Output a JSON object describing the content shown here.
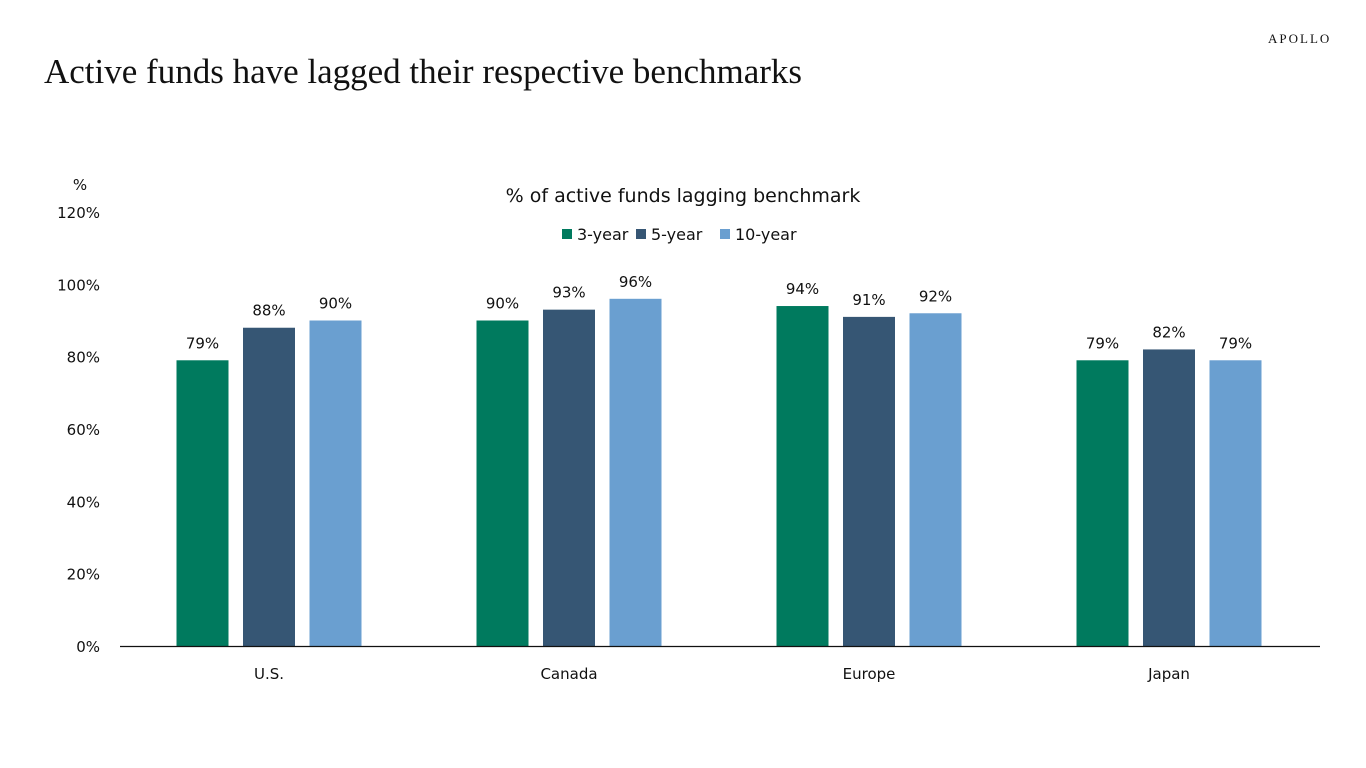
{
  "page": {
    "title": "Active funds have lagged their respective benchmarks",
    "logo": "APOLLO"
  },
  "chart_data": {
    "type": "bar",
    "title": "% of active funds lagging benchmark",
    "ylabel": "%",
    "xlabel": "",
    "categories": [
      "U.S.",
      "Canada",
      "Europe",
      "Japan"
    ],
    "series": [
      {
        "name": "3-year",
        "color": "#007A5E",
        "values": [
          79,
          90,
          94,
          79
        ]
      },
      {
        "name": "5-year",
        "color": "#365674",
        "values": [
          88,
          93,
          91,
          82
        ]
      },
      {
        "name": "10-year",
        "color": "#6A9FD0",
        "values": [
          90,
          96,
          92,
          79
        ]
      }
    ],
    "ylim": [
      0,
      120
    ],
    "yticks": [
      0,
      20,
      40,
      60,
      80,
      100,
      120
    ],
    "ytick_format": "%",
    "data_labels": true,
    "grid": false,
    "legend_position": "top-center"
  }
}
